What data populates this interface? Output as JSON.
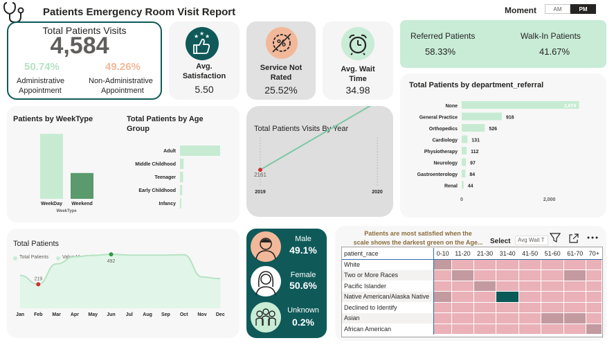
{
  "header": {
    "title": "Patients Emergency Room Visit Report",
    "moment_label": "Moment",
    "moment_options": [
      "AM",
      "PM"
    ],
    "moment_selected": "PM"
  },
  "total_patients_card": {
    "title": "Total Patients Visits",
    "value": "4,584",
    "admin_pct": "50.74%",
    "admin_label_1": "Administrative",
    "admin_label_2": "Appointment",
    "nonadmin_pct": "49.26%",
    "nonadmin_label_1": "Non-Administrative",
    "nonadmin_label_2": "Appointment"
  },
  "kpis": {
    "satisfaction": {
      "label_1": "Avg.",
      "label_2": "Satisfaction",
      "value": "5.50",
      "icon": "thumbs-up-stars-icon"
    },
    "not_rated": {
      "label_1": "Service Not",
      "label_2": "Rated",
      "value": "25.52%",
      "icon": "percent-badge-icon"
    },
    "wait": {
      "label_1": "Avg. Wait",
      "label_2": "Time",
      "value": "34.98",
      "icon": "alarm-clock-icon"
    }
  },
  "referral_card": {
    "referred_label": "Referred Patients",
    "referred_value": "58.33%",
    "walkin_label": "Walk-In Patients",
    "walkin_value": "41.67%"
  },
  "colors": {
    "teal_dark": "#0f5959",
    "mint": "#c8ecd6",
    "mint_bar": "#c6ebd2",
    "dark_green_bar": "#5a9a6c",
    "orange_pct": "#f2b89a",
    "green_pct": "#b4e3c3",
    "heat_pink": "#eab1b8",
    "heat_gray": "#c39aa0",
    "heat_dark": "#0a5a5a"
  },
  "charts": {
    "weektype": {
      "title": "Patients by WeekType",
      "xlabel": "WeekType",
      "chart_data": {
        "type": "bar",
        "categories": [
          "WeekDay",
          "Weekend"
        ],
        "values": [
          3280,
          1304
        ],
        "ylim": [
          0,
          3500
        ]
      }
    },
    "age_group": {
      "title_1": "Total Patients by Age",
      "title_2": "Group",
      "chart_data": {
        "type": "bar",
        "orientation": "horizontal",
        "categories": [
          "Adult",
          "Middle Childhood",
          "Teenager",
          "Early Childhood",
          "Infancy"
        ],
        "values": [
          2900,
          260,
          230,
          160,
          100
        ],
        "xlim": [
          0,
          3000
        ]
      }
    },
    "visits_by_year": {
      "title": "Total Patients Visits By Year",
      "chart_data": {
        "type": "line",
        "x": [
          "2019",
          "2020"
        ],
        "series": [
          {
            "values": [
              2161,
              2423
            ]
          }
        ],
        "ylim": [
          2100,
          2500
        ]
      }
    },
    "department": {
      "title": "Total Patients by department_referral",
      "x_ticks": [
        "0",
        "2,000"
      ],
      "chart_data": {
        "type": "bar",
        "orientation": "horizontal",
        "categories": [
          "None",
          "General Practice",
          "Orthopedics",
          "Cardiology",
          "Physiotherapy",
          "Neurology",
          "Gastroenterology",
          "Renal"
        ],
        "values": [
          2674,
          916,
          526,
          131,
          112,
          97,
          84,
          44
        ],
        "value_labels": [
          "2,674",
          "916",
          "526",
          "131",
          "112",
          "97",
          "84",
          "44"
        ],
        "xlim": [
          0,
          3000
        ]
      }
    },
    "monthly": {
      "title": "Total Patients",
      "legend": [
        "Total Patients",
        "Value Max Point (Month)"
      ],
      "chart_data": {
        "type": "area",
        "categories": [
          "Jan",
          "Feb",
          "Mar",
          "Apr",
          "May",
          "Jun",
          "Jul",
          "Aug",
          "Sep",
          "Oct",
          "Nov",
          "Dec"
        ],
        "values": [
          300,
          219,
          405,
          470,
          482,
          492,
          485,
          485,
          485,
          488,
          285,
          270
        ],
        "min_label": "219",
        "max_label": "492",
        "ylim": [
          0,
          600
        ]
      }
    }
  },
  "gender": {
    "male_label": "Male",
    "male_value": "49.1%",
    "female_label": "Female",
    "female_value": "50.6%",
    "unknown_label": "Unknown",
    "unknown_value": "0.2%"
  },
  "heatmap": {
    "note_1": "Patients are most satisfied when the",
    "note_2": "scale shows the darkest green on the Age...",
    "select_label": "Select",
    "dropdown_value": "Avg Wait T",
    "row_header": "patient_race",
    "columns": [
      "0-10",
      "11-20",
      "21-30",
      "31-40",
      "41-50",
      "51-60",
      "61-70",
      "70+"
    ],
    "rows": [
      "White",
      "Two or More Races",
      "Pacific Islander",
      "Native American/Alaska Native",
      "Declined to Identify",
      "Asian",
      "African American"
    ],
    "chart_data": {
      "type": "heatmap",
      "levels": [
        [
          1,
          0,
          0,
          0,
          0,
          0,
          0,
          0
        ],
        [
          0,
          1,
          0,
          0,
          0,
          0,
          1,
          0
        ],
        [
          0,
          0,
          1,
          0,
          0,
          0,
          0,
          0
        ],
        [
          1,
          0,
          0,
          2,
          0,
          0,
          0,
          0
        ],
        [
          0,
          0,
          0,
          0,
          0,
          0,
          0,
          0
        ],
        [
          0,
          0,
          0,
          0,
          0,
          1,
          1,
          0
        ],
        [
          0,
          0,
          0,
          0,
          0,
          0,
          0,
          1
        ]
      ]
    }
  }
}
